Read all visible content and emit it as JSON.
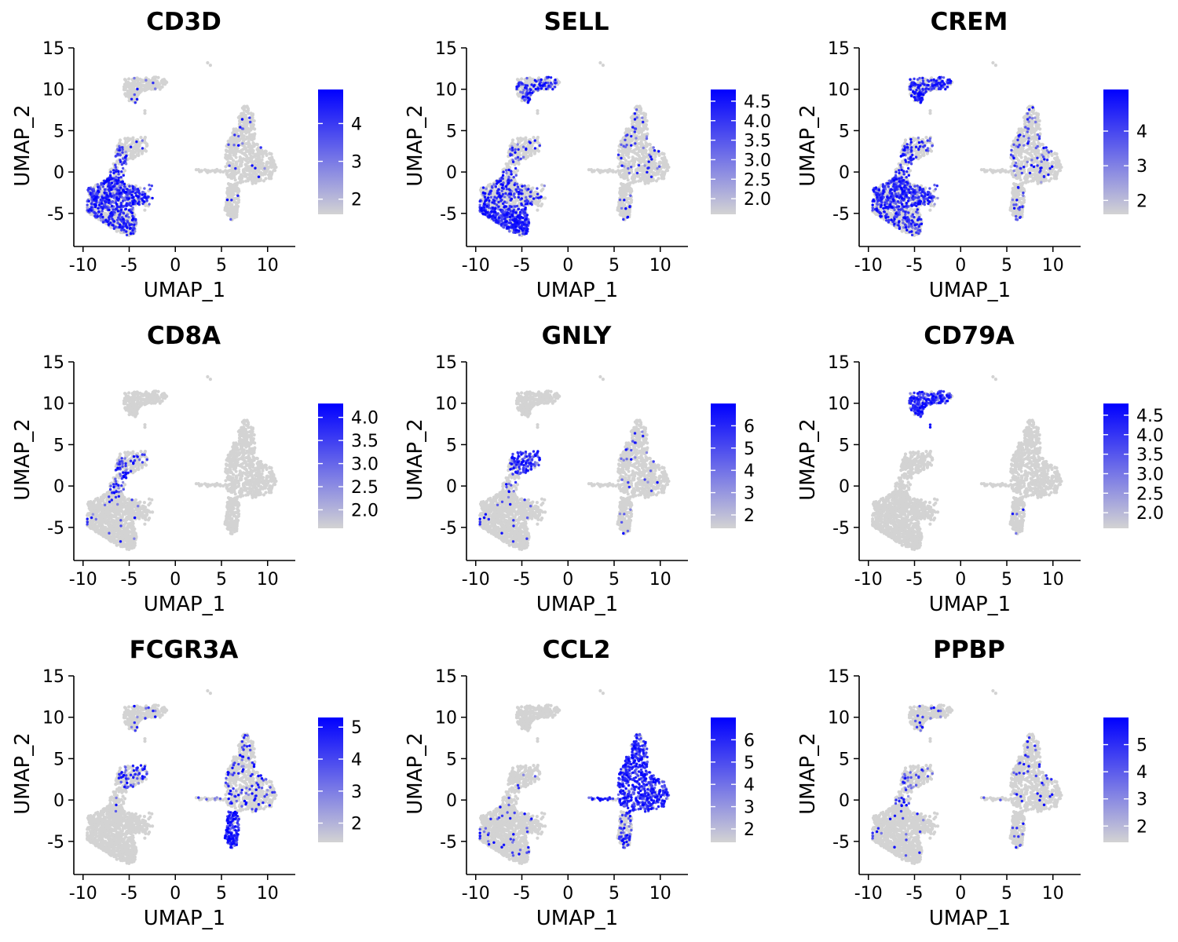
{
  "chart_data": [
    {
      "type": "scatter",
      "title": "CD3D",
      "xlabel": "UMAP_1",
      "ylabel": "UMAP_2",
      "xlim": [
        -11,
        13
      ],
      "ylim": [
        -9,
        15
      ],
      "xticks": [
        "-10",
        "-5",
        "0",
        "5",
        "10"
      ],
      "yticks": [
        "-5",
        "0",
        "5",
        "10",
        "15"
      ],
      "colorbar": {
        "min": 1.6,
        "max": 4.9,
        "ticks": [
          "2",
          "3",
          "4"
        ],
        "tick_values": [
          2,
          3,
          4
        ],
        "low_color": "#d3d3d3",
        "high_color": "#0000ff"
      },
      "expression": {
        "cd4t": 0.65,
        "naive": 0.35,
        "cd8": 0.55,
        "nk": 0.05,
        "bcell": 0.02,
        "mono14": 0.02,
        "mono16": 0.02,
        "bridge": 0.02
      }
    },
    {
      "type": "scatter",
      "title": "SELL",
      "xlabel": "UMAP_1",
      "ylabel": "UMAP_2",
      "xlim": [
        -11,
        13
      ],
      "ylim": [
        -9,
        15
      ],
      "xticks": [
        "-10",
        "-5",
        "0",
        "5",
        "10"
      ],
      "yticks": [
        "-5",
        "0",
        "5",
        "10",
        "15"
      ],
      "colorbar": {
        "min": 1.6,
        "max": 4.8,
        "ticks": [
          "2.0",
          "2.5",
          "3.0",
          "3.5",
          "4.0",
          "4.5"
        ],
        "tick_values": [
          2.0,
          2.5,
          3.0,
          3.5,
          4.0,
          4.5
        ],
        "low_color": "#d3d3d3",
        "high_color": "#0000ff"
      },
      "expression": {
        "cd4t": 0.3,
        "naive": 0.8,
        "cd8": 0.25,
        "nk": 0.15,
        "bcell": 0.4,
        "mono14": 0.06,
        "mono16": 0.05,
        "bridge": 0.05
      }
    },
    {
      "type": "scatter",
      "title": "CREM",
      "xlabel": "UMAP_1",
      "ylabel": "UMAP_2",
      "xlim": [
        -11,
        13
      ],
      "ylim": [
        -9,
        15
      ],
      "xticks": [
        "-10",
        "-5",
        "0",
        "5",
        "10"
      ],
      "yticks": [
        "-5",
        "0",
        "5",
        "10",
        "15"
      ],
      "colorbar": {
        "min": 1.6,
        "max": 5.2,
        "ticks": [
          "2",
          "3",
          "4"
        ],
        "tick_values": [
          2,
          3,
          4
        ],
        "low_color": "#d3d3d3",
        "high_color": "#0000ff"
      },
      "expression": {
        "cd4t": 0.65,
        "naive": 0.25,
        "cd8": 0.45,
        "nk": 0.35,
        "bcell": 0.6,
        "mono14": 0.1,
        "mono16": 0.12,
        "bridge": 0.05
      }
    },
    {
      "type": "scatter",
      "title": "CD8A",
      "xlabel": "UMAP_1",
      "ylabel": "UMAP_2",
      "xlim": [
        -11,
        13
      ],
      "ylim": [
        -9,
        15
      ],
      "xticks": [
        "-10",
        "-5",
        "0",
        "5",
        "10"
      ],
      "yticks": [
        "-5",
        "0",
        "5",
        "10",
        "15"
      ],
      "colorbar": {
        "min": 1.6,
        "max": 4.3,
        "ticks": [
          "2.0",
          "2.5",
          "3.0",
          "3.5",
          "4.0"
        ],
        "tick_values": [
          2.0,
          2.5,
          3.0,
          3.5,
          4.0
        ],
        "low_color": "#d3d3d3",
        "high_color": "#0000ff"
      },
      "expression": {
        "cd4t": 0.02,
        "naive": 0.02,
        "cd8": 0.55,
        "nk": 0.2,
        "bcell": 0.0,
        "mono14": 0.0,
        "mono16": 0.0,
        "bridge": 0.0
      }
    },
    {
      "type": "scatter",
      "title": "GNLY",
      "xlabel": "UMAP_1",
      "ylabel": "UMAP_2",
      "xlim": [
        -11,
        13
      ],
      "ylim": [
        -9,
        15
      ],
      "xticks": [
        "-10",
        "-5",
        "0",
        "5",
        "10"
      ],
      "yticks": [
        "-5",
        "0",
        "5",
        "10",
        "15"
      ],
      "colorbar": {
        "min": 1.4,
        "max": 7.0,
        "ticks": [
          "2",
          "3",
          "4",
          "5",
          "6"
        ],
        "tick_values": [
          2,
          3,
          4,
          5,
          6
        ],
        "low_color": "#d3d3d3",
        "high_color": "#0000ff"
      },
      "expression": {
        "cd4t": 0.02,
        "naive": 0.02,
        "cd8": 0.12,
        "nk": 0.9,
        "bcell": 0.0,
        "mono14": 0.03,
        "mono16": 0.03,
        "bridge": 0.0
      }
    },
    {
      "type": "scatter",
      "title": "CD79A",
      "xlabel": "UMAP_1",
      "ylabel": "UMAP_2",
      "xlim": [
        -11,
        13
      ],
      "ylim": [
        -9,
        15
      ],
      "xticks": [
        "-10",
        "-5",
        "0",
        "5",
        "10"
      ],
      "yticks": [
        "-5",
        "0",
        "5",
        "10",
        "15"
      ],
      "colorbar": {
        "min": 1.6,
        "max": 4.8,
        "ticks": [
          "2.0",
          "2.5",
          "3.0",
          "3.5",
          "4.0",
          "4.5"
        ],
        "tick_values": [
          2.0,
          2.5,
          3.0,
          3.5,
          4.0,
          4.5
        ],
        "low_color": "#d3d3d3",
        "high_color": "#0000ff"
      },
      "expression": {
        "cd4t": 0.0,
        "naive": 0.0,
        "cd8": 0.0,
        "nk": 0.0,
        "bcell": 0.85,
        "mono14": 0.0,
        "mono16": 0.02,
        "bridge": 0.0
      }
    },
    {
      "type": "scatter",
      "title": "FCGR3A",
      "xlabel": "UMAP_1",
      "ylabel": "UMAP_2",
      "xlim": [
        -11,
        13
      ],
      "ylim": [
        -9,
        15
      ],
      "xticks": [
        "-10",
        "-5",
        "0",
        "5",
        "10"
      ],
      "yticks": [
        "-5",
        "0",
        "5",
        "10",
        "15"
      ],
      "colorbar": {
        "min": 1.4,
        "max": 5.3,
        "ticks": [
          "2",
          "3",
          "4",
          "5"
        ],
        "tick_values": [
          2,
          3,
          4,
          5
        ],
        "low_color": "#d3d3d3",
        "high_color": "#0000ff"
      },
      "expression": {
        "cd4t": 0.0,
        "naive": 0.0,
        "cd8": 0.03,
        "nk": 0.5,
        "bcell": 0.03,
        "mono14": 0.15,
        "mono16": 0.95,
        "bridge": 0.2
      }
    },
    {
      "type": "scatter",
      "title": "CCL2",
      "xlabel": "UMAP_1",
      "ylabel": "UMAP_2",
      "xlim": [
        -11,
        13
      ],
      "ylim": [
        -9,
        15
      ],
      "xticks": [
        "-10",
        "-5",
        "0",
        "5",
        "10"
      ],
      "yticks": [
        "-5",
        "0",
        "5",
        "10",
        "15"
      ],
      "colorbar": {
        "min": 1.4,
        "max": 7.0,
        "ticks": [
          "2",
          "3",
          "4",
          "5",
          "6"
        ],
        "tick_values": [
          2,
          3,
          4,
          5,
          6
        ],
        "low_color": "#d3d3d3",
        "high_color": "#0000ff"
      },
      "expression": {
        "cd4t": 0.03,
        "naive": 0.04,
        "cd8": 0.02,
        "nk": 0.02,
        "bcell": 0.0,
        "mono14": 0.9,
        "mono16": 0.4,
        "bridge": 0.6
      }
    },
    {
      "type": "scatter",
      "title": "PPBP",
      "xlabel": "UMAP_1",
      "ylabel": "UMAP_2",
      "xlim": [
        -11,
        13
      ],
      "ylim": [
        -9,
        15
      ],
      "xticks": [
        "-10",
        "-5",
        "0",
        "5",
        "10"
      ],
      "yticks": [
        "-5",
        "0",
        "5",
        "10",
        "15"
      ],
      "colorbar": {
        "min": 1.4,
        "max": 6.0,
        "ticks": [
          "2",
          "3",
          "4",
          "5"
        ],
        "tick_values": [
          2,
          3,
          4,
          5
        ],
        "low_color": "#d3d3d3",
        "high_color": "#0000ff"
      },
      "expression": {
        "cd4t": 0.02,
        "naive": 0.02,
        "cd8": 0.25,
        "nk": 0.15,
        "bcell": 0.06,
        "mono14": 0.04,
        "mono16": 0.04,
        "bridge": 0.1
      }
    }
  ]
}
